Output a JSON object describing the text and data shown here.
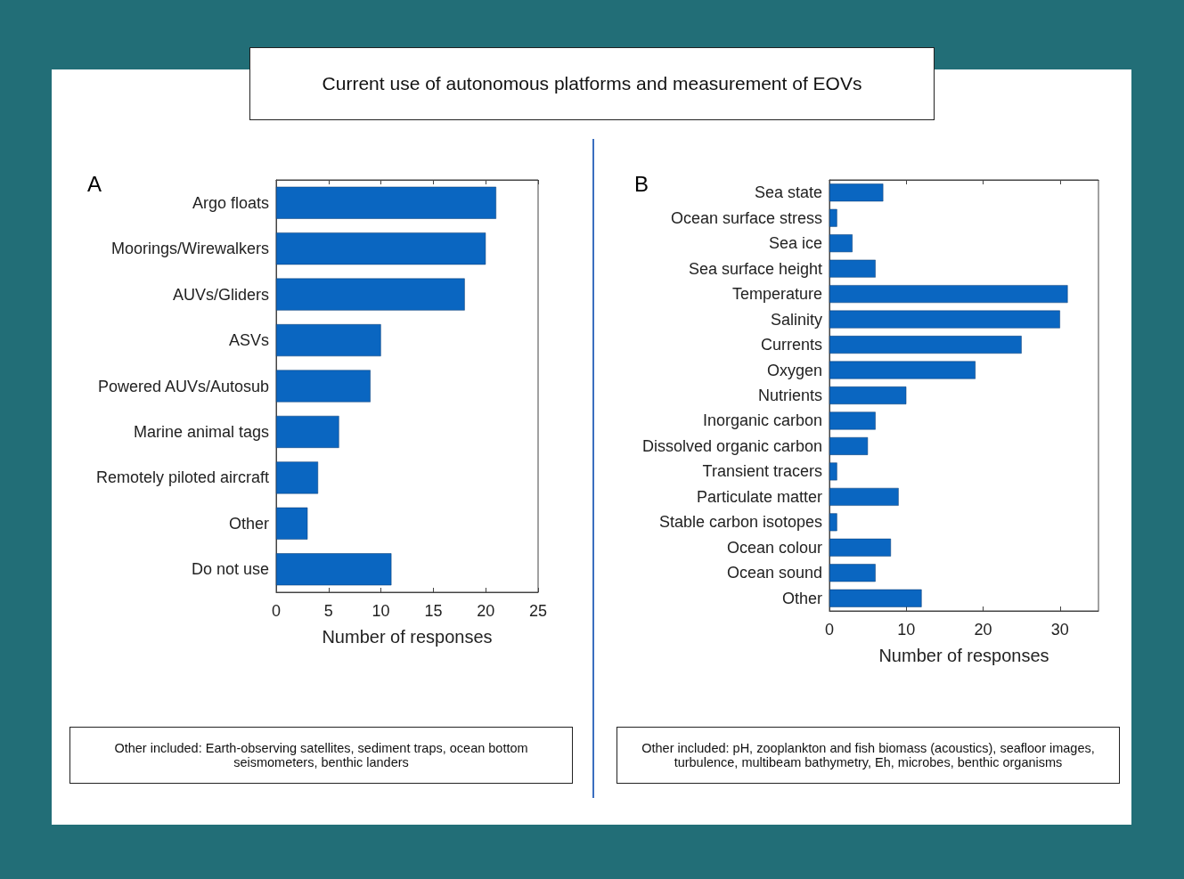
{
  "chart_data": [
    {
      "type": "bar",
      "orientation": "horizontal",
      "title": "Current use of autonomous platforms and measurement of EOVs",
      "xlabel": "Number of responses",
      "categories": [
        "Argo floats",
        "Moorings/Wirewalkers",
        "AUVs/Gliders",
        "ASVs",
        "Powered AUVs/Autosub",
        "Marine animal tags",
        "Remotely piloted aircraft",
        "Other",
        "Do not use"
      ],
      "values": [
        21,
        20,
        18,
        10,
        9,
        6,
        4,
        3,
        11
      ],
      "color": "#0a66c1",
      "xlim": [
        0,
        25
      ],
      "xticks": [
        0,
        5,
        10,
        15,
        20,
        25
      ],
      "annotations": [
        "A",
        "Other included: Earth-observing satellites, sediment traps, ocean bottom seismometers, benthic landers"
      ]
    },
    {
      "type": "bar",
      "orientation": "horizontal",
      "xlabel": "Number of responses",
      "categories": [
        "Sea state",
        "Ocean surface stress",
        "Sea ice",
        "Sea surface height",
        "Temperature",
        "Salinity",
        "Currents",
        "Oxygen",
        "Nutrients",
        "Inorganic carbon",
        "Dissolved organic carbon",
        "Transient tracers",
        "Particulate matter",
        "Stable carbon isotopes",
        "Ocean colour",
        "Ocean sound",
        "Other"
      ],
      "values": [
        7,
        1,
        3,
        6,
        31,
        30,
        25,
        19,
        10,
        6,
        5,
        1,
        9,
        1,
        8,
        6,
        12
      ],
      "color": "#0a66c1",
      "xlim": [
        0,
        35
      ],
      "xticks": [
        0,
        10,
        20,
        30
      ],
      "annotations": [
        "B",
        "Other included: pH, zooplankton and fish biomass (acoustics), seafloor images, turbulence, multibeam bathymetry, Eh, microbes, benthic organisms"
      ]
    }
  ]
}
